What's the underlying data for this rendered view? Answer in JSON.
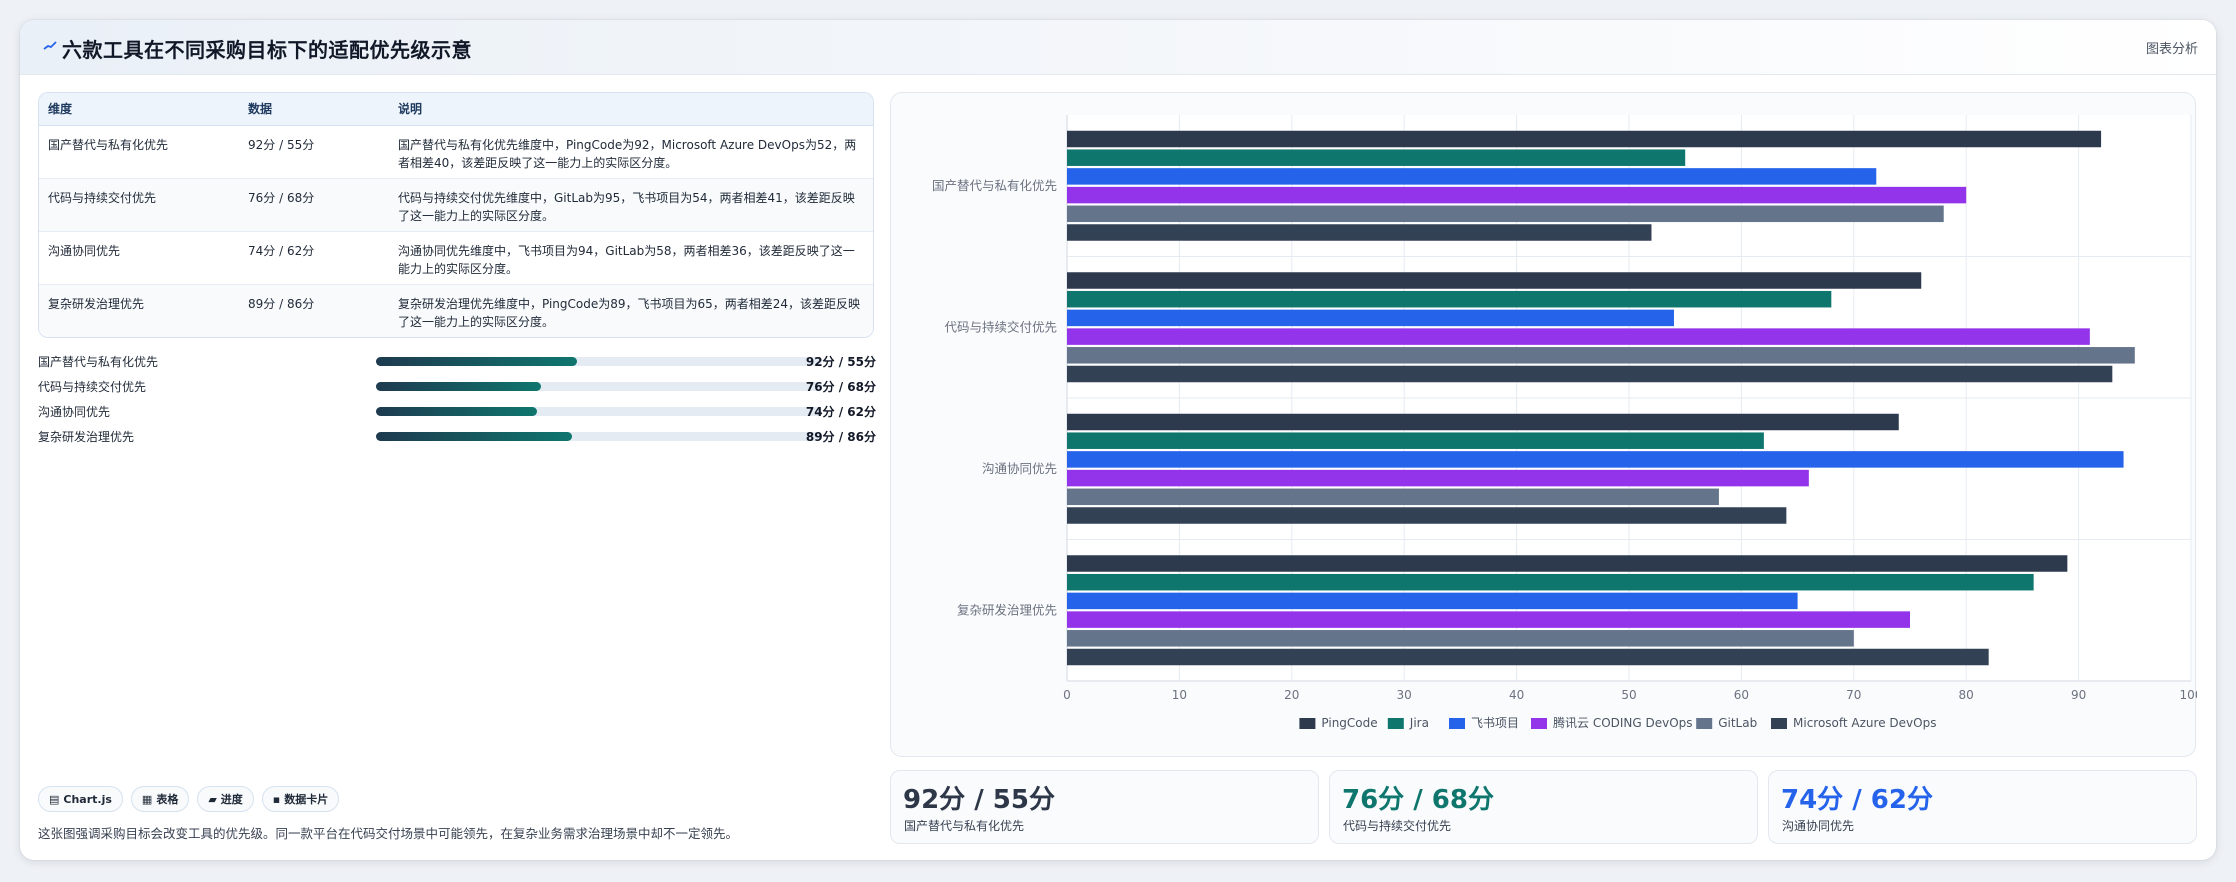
{
  "header": {
    "title": "六款工具在不同采购目标下的适配优先级示意",
    "badge": "图表分析",
    "logo_icon": "trend-line-icon"
  },
  "table": {
    "headers": [
      "维度",
      "数据",
      "说明"
    ],
    "rows": [
      {
        "dim": "国产替代与私有化优先",
        "val": "92分 / 55分",
        "desc": "国产替代与私有化优先维度中，PingCode为92，Microsoft Azure DevOps为52，两者相差40，该差距反映了这一能力上的实际区分度。"
      },
      {
        "dim": "代码与持续交付优先",
        "val": "76分 / 68分",
        "desc": "代码与持续交付优先维度中，GitLab为95，飞书项目为54，两者相差41，该差距反映了这一能力上的实际区分度。"
      },
      {
        "dim": "沟通协同优先",
        "val": "74分 / 62分",
        "desc": "沟通协同优先维度中，飞书项目为94，GitLab为58，两者相差36，该差距反映了这一能力上的实际区分度。"
      },
      {
        "dim": "复杂研发治理优先",
        "val": "89分 / 86分",
        "desc": "复杂研发治理优先维度中，PingCode为89，飞书项目为65，两者相差24，该差距反映了这一能力上的实际区分度。"
      }
    ]
  },
  "progress": [
    {
      "label": "国产替代与私有化优先",
      "value": "92分 / 55分",
      "fraction": 0.45
    },
    {
      "label": "代码与持续交付优先",
      "value": "76分 / 68分",
      "fraction": 0.37
    },
    {
      "label": "沟通协同优先",
      "value": "74分 / 62分",
      "fraction": 0.36
    },
    {
      "label": "复杂研发治理优先",
      "value": "89分 / 86分",
      "fraction": 0.44
    }
  ],
  "chips": [
    {
      "icon": "chart-icon",
      "label": "Chart.js"
    },
    {
      "icon": "table-icon",
      "label": "表格"
    },
    {
      "icon": "progress-icon",
      "label": "进度"
    },
    {
      "icon": "card-icon",
      "label": "数据卡片"
    }
  ],
  "footnote": "这张图强调采购目标会改变工具的优先级。同一款平台在代码交付场景中可能领先，在复杂业务需求治理场景中却不一定领先。",
  "kpis": [
    {
      "value": "92分 / 55分",
      "label": "国产替代与私有化优先",
      "color": "#2d3748"
    },
    {
      "value": "76分 / 68分",
      "label": "代码与持续交付优先",
      "color": "#0f766e"
    },
    {
      "value": "74分 / 62分",
      "label": "沟通协同优先",
      "color": "#2563eb"
    }
  ],
  "chart_data": {
    "type": "bar",
    "orientation": "horizontal",
    "categories": [
      "国产替代与私有化优先",
      "代码与持续交付优先",
      "沟通协同优先",
      "复杂研发治理优先"
    ],
    "series": [
      {
        "name": "PingCode",
        "color": "#2d3a4e",
        "values": [
          92,
          76,
          74,
          89
        ]
      },
      {
        "name": "Jira",
        "color": "#0f766e",
        "values": [
          55,
          68,
          62,
          86
        ]
      },
      {
        "name": "飞书项目",
        "color": "#2563eb",
        "values": [
          72,
          54,
          94,
          65
        ]
      },
      {
        "name": "腾讯云 CODING DevOps",
        "color": "#9333ea",
        "values": [
          80,
          91,
          66,
          75
        ]
      },
      {
        "name": "GitLab",
        "color": "#64748b",
        "values": [
          78,
          95,
          58,
          70
        ]
      },
      {
        "name": "Microsoft Azure DevOps",
        "color": "#334155",
        "values": [
          52,
          93,
          64,
          82
        ]
      }
    ],
    "xlim": [
      0,
      100
    ],
    "xticks": [
      0,
      10,
      20,
      30,
      40,
      50,
      60,
      70,
      80,
      90,
      100
    ],
    "grid": true,
    "legend": "bottom"
  }
}
